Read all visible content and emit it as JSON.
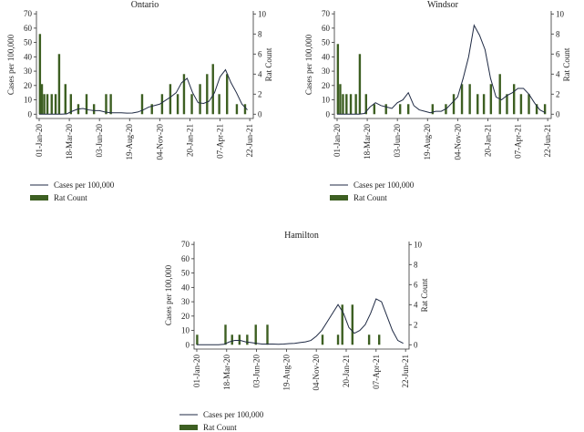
{
  "chart_data": [
    {
      "type": "combo",
      "title": "Ontario",
      "ylabel": "Cases per 100,000",
      "y2label": "Rat Count",
      "xlim": [
        "2019-12-25",
        "2021-07-01"
      ],
      "xticks": [
        {
          "value": "2020-01-01",
          "label": "01-Jan-20"
        },
        {
          "value": "2020-03-18",
          "label": "18-Mar-20"
        },
        {
          "value": "2020-06-03",
          "label": "03-Jun-20"
        },
        {
          "value": "2020-08-19",
          "label": "19-Aug-20"
        },
        {
          "value": "2020-11-04",
          "label": "04-Nov-20"
        },
        {
          "value": "2021-01-20",
          "label": "20-Jan-21"
        },
        {
          "value": "2021-04-07",
          "label": "07-Apr-21"
        },
        {
          "value": "2021-06-22",
          "label": "22-Jun-21"
        }
      ],
      "ylim": [
        -3,
        72
      ],
      "yticks": [
        0,
        10,
        20,
        30,
        40,
        50,
        60,
        70
      ],
      "y2lim": [
        -0.43,
        10.3
      ],
      "y2ticks": [
        0,
        2,
        4,
        6,
        8,
        10
      ],
      "series": [
        {
          "name": "Cases per 100,000",
          "type": "line",
          "color": "#1f2a44",
          "x": [
            "2020-01-01",
            "2020-01-15",
            "2020-01-29",
            "2020-02-12",
            "2020-02-26",
            "2020-03-11",
            "2020-03-25",
            "2020-04-08",
            "2020-04-22",
            "2020-05-06",
            "2020-05-20",
            "2020-06-03",
            "2020-06-17",
            "2020-07-01",
            "2020-07-15",
            "2020-07-29",
            "2020-08-12",
            "2020-08-26",
            "2020-09-09",
            "2020-09-23",
            "2020-10-07",
            "2020-10-21",
            "2020-11-04",
            "2020-11-18",
            "2020-12-02",
            "2020-12-16",
            "2020-12-30",
            "2021-01-13",
            "2021-01-27",
            "2021-02-10",
            "2021-02-24",
            "2021-03-10",
            "2021-03-24",
            "2021-04-07",
            "2021-04-21",
            "2021-05-05",
            "2021-05-19",
            "2021-06-02",
            "2021-06-16"
          ],
          "values": [
            0,
            0,
            0,
            0,
            0,
            0.2,
            2,
            3.5,
            4,
            3,
            2.5,
            2.5,
            1.5,
            1,
            1,
            1,
            0.7,
            0.8,
            1.5,
            3,
            5,
            6,
            7,
            9.5,
            12,
            15,
            22,
            25,
            15,
            8,
            7.5,
            9,
            15,
            26,
            31,
            22,
            15,
            7,
            3
          ]
        },
        {
          "name": "Rat Count",
          "type": "bar",
          "color": "#3d5f22",
          "axis": "y2",
          "x": [
            "2020-01-03",
            "2020-01-08",
            "2020-01-14",
            "2020-01-22",
            "2020-02-02",
            "2020-02-12",
            "2020-02-21",
            "2020-03-08",
            "2020-03-22",
            "2020-04-10",
            "2020-05-01",
            "2020-05-20",
            "2020-06-20",
            "2020-07-02",
            "2020-09-20",
            "2020-10-15",
            "2020-11-10",
            "2020-12-01",
            "2020-12-20",
            "2021-01-05",
            "2021-01-25",
            "2021-02-15",
            "2021-03-05",
            "2021-03-20",
            "2021-04-05",
            "2021-04-25",
            "2021-05-20",
            "2021-06-10"
          ],
          "values": [
            8,
            3,
            2,
            2,
            2,
            2,
            6,
            3,
            2,
            1,
            2,
            1,
            2,
            2,
            2,
            1,
            2,
            3,
            2,
            4,
            2,
            3,
            4,
            5,
            2,
            4,
            1,
            1
          ]
        }
      ]
    },
    {
      "type": "combo",
      "title": "Windsor",
      "ylabel": "Cases per 100,000",
      "y2label": "Rat Count",
      "xlim": [
        "2019-12-25",
        "2021-07-01"
      ],
      "xticks": [
        {
          "value": "2020-01-01",
          "label": "01-Jan-20"
        },
        {
          "value": "2020-03-18",
          "label": "18-Mar-20"
        },
        {
          "value": "2020-06-03",
          "label": "03-Jun-20"
        },
        {
          "value": "2020-08-19",
          "label": "19-Aug-20"
        },
        {
          "value": "2020-11-04",
          "label": "04-Nov-20"
        },
        {
          "value": "2021-01-20",
          "label": "20-Jan-21"
        },
        {
          "value": "2021-04-07",
          "label": "07-Apr-21"
        },
        {
          "value": "2021-06-22",
          "label": "22-Jun-21"
        }
      ],
      "ylim": [
        -3,
        72
      ],
      "yticks": [
        0,
        10,
        20,
        30,
        40,
        50,
        60,
        70
      ],
      "y2lim": [
        -0.43,
        10.3
      ],
      "y2ticks": [
        0,
        2,
        4,
        6,
        8,
        10
      ],
      "series": [
        {
          "name": "Cases per 100,000",
          "type": "line",
          "color": "#1f2a44",
          "x": [
            "2020-01-01",
            "2020-01-15",
            "2020-01-29",
            "2020-02-12",
            "2020-02-26",
            "2020-03-11",
            "2020-03-25",
            "2020-04-08",
            "2020-04-22",
            "2020-05-06",
            "2020-05-20",
            "2020-06-03",
            "2020-06-17",
            "2020-07-01",
            "2020-07-15",
            "2020-07-29",
            "2020-08-12",
            "2020-08-26",
            "2020-09-09",
            "2020-09-23",
            "2020-10-07",
            "2020-10-21",
            "2020-11-04",
            "2020-11-18",
            "2020-12-02",
            "2020-12-16",
            "2020-12-30",
            "2021-01-13",
            "2021-01-27",
            "2021-02-10",
            "2021-02-24",
            "2021-03-10",
            "2021-03-24",
            "2021-04-07",
            "2021-04-21",
            "2021-05-05",
            "2021-05-19",
            "2021-06-02",
            "2021-06-16"
          ],
          "values": [
            0,
            0,
            0,
            0,
            0,
            0.5,
            5,
            8,
            6,
            5,
            4,
            8,
            10,
            15,
            6,
            3,
            2,
            1,
            2,
            2,
            4,
            8,
            12,
            25,
            40,
            62,
            55,
            45,
            25,
            12,
            10,
            13,
            15,
            18,
            18,
            14,
            8,
            3,
            1
          ]
        },
        {
          "name": "Rat Count",
          "type": "bar",
          "color": "#3d5f22",
          "axis": "y2",
          "x": [
            "2020-01-03",
            "2020-01-09",
            "2020-01-16",
            "2020-01-25",
            "2020-02-05",
            "2020-02-18",
            "2020-02-28",
            "2020-03-15",
            "2020-04-05",
            "2020-05-05",
            "2020-06-10",
            "2020-07-01",
            "2020-09-01",
            "2020-10-05",
            "2020-10-25",
            "2020-11-15",
            "2020-12-05",
            "2020-12-25",
            "2021-01-10",
            "2021-01-28",
            "2021-02-20",
            "2021-03-10",
            "2021-03-28",
            "2021-04-15",
            "2021-05-05",
            "2021-05-25",
            "2021-06-15"
          ],
          "values": [
            7,
            3,
            2,
            2,
            2,
            2,
            6,
            2,
            1,
            1,
            1,
            1,
            1,
            1,
            2,
            3,
            3,
            2,
            2,
            3,
            4,
            2,
            3,
            2,
            2,
            1,
            1
          ]
        }
      ]
    },
    {
      "type": "combo",
      "title": "Hamilton",
      "ylabel": "Cases per 100,000",
      "y2label": "Rat Count",
      "xlim": [
        "2019-12-25",
        "2021-07-01"
      ],
      "xticks": [
        {
          "value": "2020-01-01",
          "label": "01-Jan-20"
        },
        {
          "value": "2020-03-18",
          "label": "18-Mar-20"
        },
        {
          "value": "2020-06-03",
          "label": "03-Jun-20"
        },
        {
          "value": "2020-08-19",
          "label": "19-Aug-20"
        },
        {
          "value": "2020-11-04",
          "label": "04-Nov-20"
        },
        {
          "value": "2021-01-20",
          "label": "20-Jan-21"
        },
        {
          "value": "2021-04-07",
          "label": "07-Apr-21"
        },
        {
          "value": "2021-06-22",
          "label": "22-Jun-21"
        }
      ],
      "ylim": [
        -3,
        72
      ],
      "yticks": [
        0,
        10,
        20,
        30,
        40,
        50,
        60,
        70
      ],
      "y2lim": [
        -0.43,
        10.3
      ],
      "y2ticks": [
        0,
        2,
        4,
        6,
        8,
        10
      ],
      "series": [
        {
          "name": "Cases per 100,000",
          "type": "line",
          "color": "#1f2a44",
          "x": [
            "2020-01-01",
            "2020-01-15",
            "2020-01-29",
            "2020-02-12",
            "2020-02-26",
            "2020-03-11",
            "2020-03-25",
            "2020-04-08",
            "2020-04-22",
            "2020-05-06",
            "2020-05-20",
            "2020-06-03",
            "2020-06-17",
            "2020-07-01",
            "2020-07-15",
            "2020-07-29",
            "2020-08-12",
            "2020-08-26",
            "2020-09-09",
            "2020-09-23",
            "2020-10-07",
            "2020-10-21",
            "2020-11-04",
            "2020-11-18",
            "2020-12-02",
            "2020-12-16",
            "2020-12-30",
            "2021-01-13",
            "2021-01-27",
            "2021-02-10",
            "2021-02-24",
            "2021-03-10",
            "2021-03-24",
            "2021-04-07",
            "2021-04-21",
            "2021-05-05",
            "2021-05-19",
            "2021-06-02",
            "2021-06-16"
          ],
          "values": [
            0,
            0,
            0,
            0,
            0,
            0.3,
            2,
            3,
            3,
            2,
            1.5,
            1,
            0.5,
            0.5,
            0.5,
            0.3,
            0.5,
            0.8,
            1,
            1.5,
            2,
            3,
            6,
            10,
            16,
            22,
            28,
            22,
            12,
            8,
            10,
            14,
            22,
            32,
            30,
            20,
            10,
            3,
            1
          ]
        },
        {
          "name": "Rat Count",
          "type": "bar",
          "color": "#3d5f22",
          "axis": "y2",
          "x": [
            "2020-01-02",
            "2020-03-15",
            "2020-04-01",
            "2020-04-20",
            "2020-05-10",
            "2020-06-01",
            "2020-07-01",
            "2020-11-20",
            "2020-12-30",
            "2021-01-10",
            "2021-02-05",
            "2021-03-20",
            "2021-04-15"
          ],
          "values": [
            1,
            2,
            1,
            1,
            1,
            2,
            2,
            1,
            1,
            4,
            4,
            1,
            1
          ]
        }
      ]
    }
  ]
}
